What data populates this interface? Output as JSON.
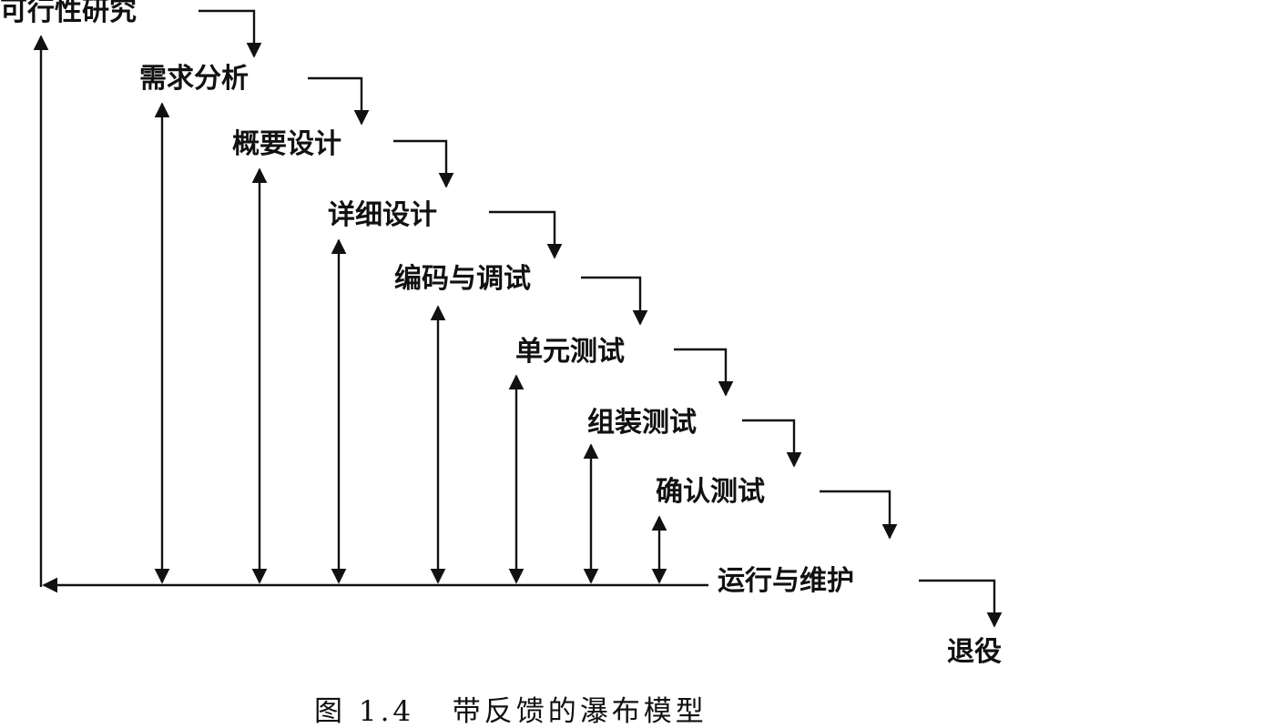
{
  "diagram": {
    "stages": [
      "可行性研究",
      "需求分析",
      "概要设计",
      "详细设计",
      "编码与调试",
      "单元测试",
      "组装测试",
      "确认测试",
      "运行与维护",
      "退役"
    ],
    "caption": "图 1.4   带反馈的瀑布模型"
  }
}
